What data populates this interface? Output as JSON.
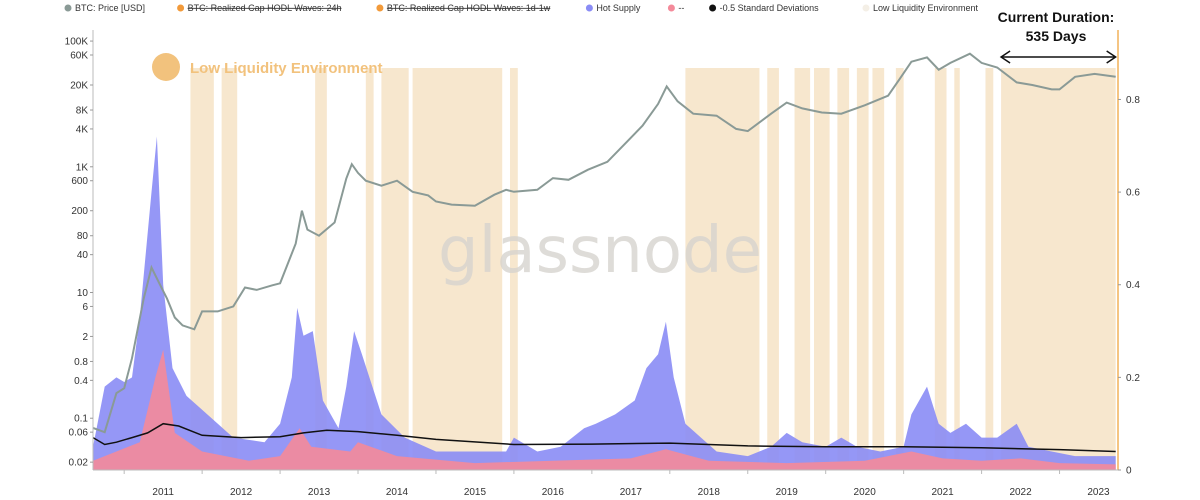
{
  "chart_data": {
    "type": "area",
    "legend": {
      "placement": "top-left",
      "items": [
        {
          "name": "BTC: Price [USD]",
          "color": "#8a9a96",
          "disabled": false
        },
        {
          "name": "BTC: Realized Cap HODL Waves: 24h",
          "color": "#f29a3a",
          "disabled": true
        },
        {
          "name": "BTC: Realized Cap HODL Waves: 1d-1w",
          "color": "#f29a3a",
          "disabled": true
        },
        {
          "name": "Hot Supply",
          "color": "#8a8cf5",
          "disabled": false
        },
        {
          "name": "--",
          "color": "#f48a9a",
          "disabled": false
        },
        {
          "name": "-0.5 Standard Deviations",
          "color": "#111111",
          "disabled": false
        },
        {
          "name": "Low Liquidity Environment",
          "color": "#f4efe6",
          "disabled": false
        }
      ]
    },
    "annotation_label": "Low Liquidity Environment",
    "annotation_color": "#f2c27d",
    "current_duration": {
      "line1": "Current Duration:",
      "line2": "535 Days",
      "start": 2022.25,
      "end": 2023.72
    },
    "watermark": "glassnode",
    "x_ticks": [
      "2011",
      "2012",
      "2013",
      "2014",
      "2015",
      "2016",
      "2017",
      "2018",
      "2019",
      "2020",
      "2021",
      "2022",
      "2023"
    ],
    "xlim": [
      2010.6,
      2023.75
    ],
    "y_left": {
      "scale": "log",
      "range": [
        0.015,
        150000
      ],
      "ticks": [
        {
          "v": 100000,
          "label": "100K"
        },
        {
          "v": 60000,
          "label": "60K"
        },
        {
          "v": 20000,
          "label": "20K"
        },
        {
          "v": 8000,
          "label": "8K"
        },
        {
          "v": 4000,
          "label": "4K"
        },
        {
          "v": 1000,
          "label": "1K"
        },
        {
          "v": 600,
          "label": "600"
        },
        {
          "v": 200,
          "label": "200"
        },
        {
          "v": 80,
          "label": "80"
        },
        {
          "v": 40,
          "label": "40"
        },
        {
          "v": 10,
          "label": "10"
        },
        {
          "v": 6,
          "label": "6"
        },
        {
          "v": 2,
          "label": "2"
        },
        {
          "v": 0.8,
          "label": "0.8"
        },
        {
          "v": 0.4,
          "label": "0.4"
        },
        {
          "v": 0.1,
          "label": "0.1"
        },
        {
          "v": 0.06,
          "label": "0.06"
        },
        {
          "v": 0.02,
          "label": "0.02"
        }
      ]
    },
    "y_right": {
      "scale": "linear",
      "range": [
        0,
        0.95
      ],
      "ticks": [
        {
          "v": 0.8,
          "label": "0.8"
        },
        {
          "v": 0.6,
          "label": "0.6"
        },
        {
          "v": 0.4,
          "label": "0.4"
        },
        {
          "v": 0.2,
          "label": "0.2"
        },
        {
          "v": 0,
          "label": "0"
        }
      ]
    },
    "low_liquidity_periods": [
      [
        2011.85,
        2012.15
      ],
      [
        2012.25,
        2012.45
      ],
      [
        2013.45,
        2013.6
      ],
      [
        2014.1,
        2014.2
      ],
      [
        2014.3,
        2014.65
      ],
      [
        2014.7,
        2015.85
      ],
      [
        2015.95,
        2016.05
      ],
      [
        2018.2,
        2019.15
      ],
      [
        2019.25,
        2019.4
      ],
      [
        2019.6,
        2019.8
      ],
      [
        2019.85,
        2020.05
      ],
      [
        2020.15,
        2020.3
      ],
      [
        2020.4,
        2020.55
      ],
      [
        2020.6,
        2020.75
      ],
      [
        2020.9,
        2021.0
      ],
      [
        2021.4,
        2021.55
      ],
      [
        2021.65,
        2021.72
      ],
      [
        2022.05,
        2022.15
      ],
      [
        2022.25,
        2023.72
      ]
    ],
    "series": [
      {
        "name": "BTC: Price [USD]",
        "color": "#8a9a96",
        "axis": "left",
        "x": [
          2010.6,
          2010.75,
          2010.9,
          2011.0,
          2011.1,
          2011.25,
          2011.35,
          2011.45,
          2011.55,
          2011.65,
          2011.75,
          2011.9,
          2012.0,
          2012.2,
          2012.4,
          2012.55,
          2012.7,
          2012.9,
          2013.0,
          2013.2,
          2013.28,
          2013.35,
          2013.5,
          2013.7,
          2013.85,
          2013.92,
          2014.0,
          2014.1,
          2014.3,
          2014.5,
          2014.7,
          2014.9,
          2015.0,
          2015.2,
          2015.5,
          2015.75,
          2015.9,
          2016.0,
          2016.3,
          2016.5,
          2016.7,
          2016.95,
          2017.2,
          2017.45,
          2017.65,
          2017.85,
          2017.96,
          2018.1,
          2018.3,
          2018.6,
          2018.85,
          2019.0,
          2019.3,
          2019.5,
          2019.7,
          2019.95,
          2020.2,
          2020.5,
          2020.8,
          2020.95,
          2021.1,
          2021.3,
          2021.45,
          2021.6,
          2021.85,
          2022.0,
          2022.2,
          2022.45,
          2022.65,
          2022.9,
          2023.0,
          2023.2,
          2023.45,
          2023.72
        ],
        "values": [
          0.07,
          0.06,
          0.25,
          0.3,
          0.9,
          8,
          25,
          14,
          8,
          4,
          3,
          2.6,
          5,
          5,
          6,
          12,
          11,
          13,
          14,
          60,
          200,
          100,
          80,
          130,
          650,
          1100,
          800,
          600,
          500,
          600,
          400,
          350,
          280,
          250,
          240,
          360,
          430,
          400,
          430,
          660,
          620,
          900,
          1200,
          2500,
          4500,
          10000,
          19000,
          11000,
          7000,
          6500,
          4000,
          3700,
          7000,
          10500,
          8500,
          7300,
          7000,
          9500,
          13500,
          25000,
          47000,
          55000,
          35000,
          45000,
          63000,
          45000,
          38000,
          22000,
          20000,
          17000,
          17000,
          27000,
          30000,
          27000
        ]
      },
      {
        "name": "Hot Supply",
        "color": "#8a8cf5",
        "axis": "right",
        "x": [
          2010.6,
          2010.75,
          2010.9,
          2011.0,
          2011.1,
          2011.2,
          2011.35,
          2011.42,
          2011.5,
          2011.62,
          2011.8,
          2012.0,
          2012.4,
          2012.8,
          2013.0,
          2013.15,
          2013.22,
          2013.3,
          2013.42,
          2013.55,
          2013.75,
          2013.85,
          2013.95,
          2014.05,
          2014.3,
          2014.6,
          2015.0,
          2015.5,
          2015.9,
          2016.0,
          2016.3,
          2016.6,
          2016.9,
          2017.05,
          2017.3,
          2017.55,
          2017.7,
          2017.85,
          2017.95,
          2018.05,
          2018.2,
          2018.6,
          2019.0,
          2019.3,
          2019.5,
          2019.7,
          2020.0,
          2020.2,
          2020.4,
          2020.7,
          2021.0,
          2021.1,
          2021.3,
          2021.45,
          2021.6,
          2021.8,
          2022.0,
          2022.2,
          2022.45,
          2022.6,
          2022.9,
          2023.2,
          2023.5,
          2023.72
        ],
        "values": [
          0.05,
          0.18,
          0.2,
          0.19,
          0.2,
          0.33,
          0.6,
          0.72,
          0.4,
          0.22,
          0.16,
          0.13,
          0.07,
          0.06,
          0.1,
          0.2,
          0.35,
          0.29,
          0.3,
          0.15,
          0.09,
          0.18,
          0.3,
          0.25,
          0.12,
          0.07,
          0.04,
          0.04,
          0.04,
          0.07,
          0.04,
          0.05,
          0.09,
          0.1,
          0.12,
          0.15,
          0.22,
          0.25,
          0.32,
          0.2,
          0.1,
          0.04,
          0.03,
          0.05,
          0.08,
          0.06,
          0.05,
          0.07,
          0.05,
          0.04,
          0.05,
          0.12,
          0.18,
          0.1,
          0.08,
          0.1,
          0.07,
          0.07,
          0.1,
          0.05,
          0.04,
          0.03,
          0.03,
          0.03
        ]
      },
      {
        "name": "--",
        "color": "#f48a9a",
        "axis": "right",
        "x": [
          2010.6,
          2010.9,
          2011.2,
          2011.4,
          2011.5,
          2011.65,
          2012.0,
          2012.6,
          2013.0,
          2013.25,
          2013.4,
          2013.9,
          2014.0,
          2014.5,
          2015.5,
          2016.5,
          2017.5,
          2017.95,
          2018.5,
          2019.5,
          2020.5,
          2021.1,
          2021.5,
          2022.0,
          2022.5,
          2023.0,
          2023.72
        ],
        "values": [
          0.02,
          0.04,
          0.06,
          0.2,
          0.26,
          0.08,
          0.04,
          0.02,
          0.03,
          0.09,
          0.05,
          0.04,
          0.06,
          0.03,
          0.015,
          0.02,
          0.025,
          0.045,
          0.02,
          0.015,
          0.02,
          0.04,
          0.025,
          0.02,
          0.025,
          0.015,
          0.012
        ]
      },
      {
        "name": "-0.5 Standard Deviations",
        "color": "#111111",
        "axis": "right",
        "x": [
          2010.6,
          2010.75,
          2010.9,
          2011.1,
          2011.3,
          2011.5,
          2011.7,
          2012.0,
          2012.5,
          2013.0,
          2013.3,
          2013.6,
          2014.0,
          2014.5,
          2015.0,
          2016.0,
          2017.0,
          2018.0,
          2019.0,
          2020.0,
          2021.0,
          2022.0,
          2023.0,
          2023.72
        ],
        "values": [
          0.07,
          0.055,
          0.06,
          0.07,
          0.08,
          0.1,
          0.095,
          0.075,
          0.07,
          0.072,
          0.08,
          0.086,
          0.083,
          0.075,
          0.066,
          0.055,
          0.056,
          0.058,
          0.052,
          0.05,
          0.05,
          0.048,
          0.044,
          0.04
        ]
      }
    ]
  }
}
